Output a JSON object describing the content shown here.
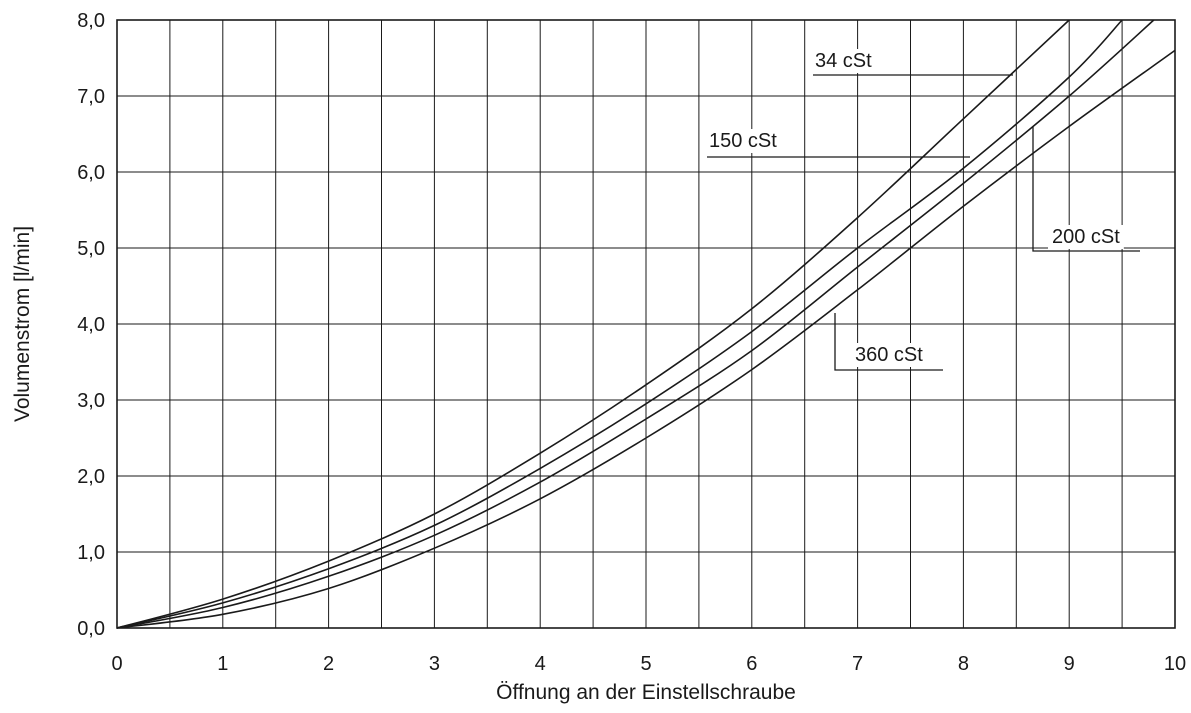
{
  "chart_data": {
    "type": "line",
    "title": "",
    "xlabel": "Öffnung an der Einstellschraube",
    "ylabel": "Volumenstrom [l/min]",
    "xlim": [
      0,
      10
    ],
    "ylim": [
      0,
      8
    ],
    "grid": true,
    "x_grid_step": 0.5,
    "y_grid_step": 1,
    "x_ticks": [
      0,
      1,
      2,
      3,
      4,
      5,
      6,
      7,
      8,
      9,
      10
    ],
    "x_tick_labels": [
      "0",
      "1",
      "2",
      "3",
      "4",
      "5",
      "6",
      "7",
      "8",
      "9",
      "10"
    ],
    "y_ticks": [
      0,
      1,
      2,
      3,
      4,
      5,
      6,
      7,
      8
    ],
    "y_tick_labels": [
      "0,0",
      "1,0",
      "2,0",
      "3,0",
      "4,0",
      "5,0",
      "6,0",
      "7,0",
      "8,0"
    ],
    "series": [
      {
        "name": "34 cSt",
        "x": [
          0,
          1,
          2,
          3,
          4,
          5,
          6,
          7,
          8,
          9
        ],
        "y": [
          0,
          0.38,
          0.88,
          1.5,
          2.3,
          3.2,
          4.2,
          5.4,
          6.7,
          8.0
        ]
      },
      {
        "name": "150 cSt",
        "x": [
          0,
          1,
          2,
          3,
          4,
          5,
          6,
          7,
          8,
          9,
          9.5
        ],
        "y": [
          0,
          0.33,
          0.78,
          1.35,
          2.1,
          2.95,
          3.9,
          5.0,
          6.05,
          7.25,
          8.0
        ]
      },
      {
        "name": "200 cSt",
        "x": [
          0,
          1,
          2,
          3,
          4,
          5,
          6,
          7,
          8,
          9,
          9.8
        ],
        "y": [
          0,
          0.27,
          0.68,
          1.22,
          1.92,
          2.75,
          3.65,
          4.75,
          5.85,
          7.0,
          8.0
        ]
      },
      {
        "name": "360 cSt",
        "x": [
          0,
          1,
          2,
          3,
          4,
          5,
          6,
          7,
          8,
          9,
          10
        ],
        "y": [
          0,
          0.18,
          0.52,
          1.05,
          1.7,
          2.5,
          3.4,
          4.45,
          5.55,
          6.6,
          7.6
        ]
      }
    ]
  }
}
